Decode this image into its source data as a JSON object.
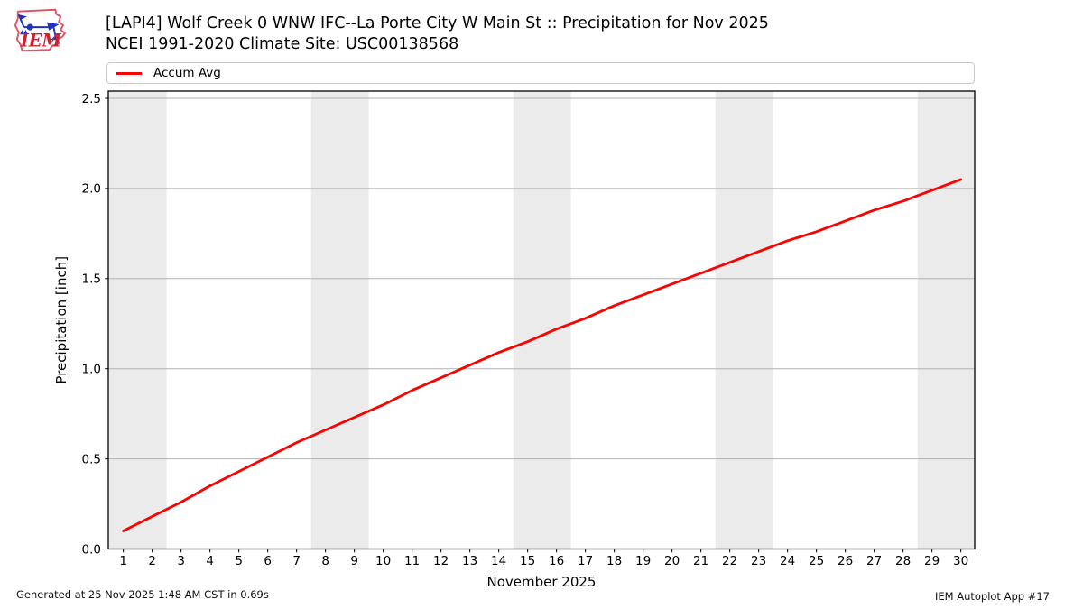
{
  "header": {
    "title_line1": "[LAPI4] Wolf Creek 0 WNW IFC--La Porte City W Main St :: Precipitation for Nov 2025",
    "title_line2": "NCEI 1991-2020 Climate Site: USC00138568",
    "logo_text": "IEM"
  },
  "legend": {
    "entries": [
      {
        "label": "Accum Avg",
        "color": "#ff0000"
      }
    ]
  },
  "footer": {
    "left": "Generated at 25 Nov 2025 1:48 AM CST in 0.69s",
    "right": "IEM Autoplot App #17"
  },
  "chart_data": {
    "type": "line",
    "title": "[LAPI4] Wolf Creek 0 WNW IFC--La Porte City W Main St :: Precipitation for Nov 2025",
    "subtitle": "NCEI 1991-2020 Climate Site: USC00138568",
    "xlabel": "November 2025",
    "ylabel": "Precipitation [inch]",
    "xlim": [
      0.48,
      30.48
    ],
    "ylim": [
      0,
      2.54
    ],
    "x_ticks": [
      1,
      2,
      3,
      4,
      5,
      6,
      7,
      8,
      9,
      10,
      11,
      12,
      13,
      14,
      15,
      16,
      17,
      18,
      19,
      20,
      21,
      22,
      23,
      24,
      25,
      26,
      27,
      28,
      29,
      30
    ],
    "y_ticks": [
      0.0,
      0.5,
      1.0,
      1.5,
      2.0,
      2.5
    ],
    "grid": "horizontal",
    "legend_position": "top",
    "weekend_bands": [
      [
        0.5,
        2.5
      ],
      [
        7.5,
        9.5
      ],
      [
        14.5,
        16.5
      ],
      [
        21.5,
        23.5
      ],
      [
        28.5,
        30.5
      ]
    ],
    "colors": {
      "band": "#ebebeb",
      "grid": "#b2b2b2",
      "spine": "#000000"
    },
    "series": [
      {
        "name": "Accum Avg",
        "color": "#ff0000",
        "x": [
          1,
          2,
          3,
          4,
          5,
          6,
          7,
          8,
          9,
          10,
          11,
          12,
          13,
          14,
          15,
          16,
          17,
          18,
          19,
          20,
          21,
          22,
          23,
          24,
          25,
          26,
          27,
          28,
          29,
          30
        ],
        "y": [
          0.1,
          0.18,
          0.26,
          0.35,
          0.43,
          0.51,
          0.59,
          0.66,
          0.73,
          0.8,
          0.88,
          0.95,
          1.02,
          1.09,
          1.15,
          1.22,
          1.28,
          1.35,
          1.41,
          1.47,
          1.53,
          1.59,
          1.65,
          1.71,
          1.76,
          1.82,
          1.88,
          1.93,
          1.99,
          2.05
        ]
      }
    ]
  }
}
